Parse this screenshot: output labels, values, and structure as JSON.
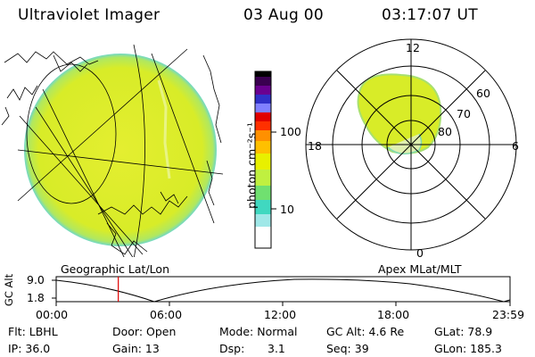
{
  "header": {
    "title": "Ultraviolet Imager",
    "date": "03 Aug 00",
    "time": "03:17:07 UT"
  },
  "colorbar": {
    "unit_label": "photon cm⁻²s⁻¹",
    "ticks": [
      "100",
      "10"
    ],
    "colors": [
      "#000000",
      "#3a0050",
      "#6a0090",
      "#3030c8",
      "#8080ff",
      "#ff0000",
      "#ff8000",
      "#ffc000",
      "#ffff00",
      "#c0ff40",
      "#40ff80",
      "#40e0e0",
      "#ffffff"
    ]
  },
  "geo_panel": {
    "label": "Geographic Lat/Lon",
    "disk_color": "#d8ec28"
  },
  "polar_panel": {
    "label": "Apex MLat/MLT",
    "mlt_top": "12",
    "mlt_left": "18",
    "mlt_right": "6",
    "mlt_bottom": "0",
    "lat_60": "60",
    "lat_70": "70",
    "lat_80": "80"
  },
  "altitude_plot": {
    "ylabel": "GC Alt",
    "y_ticks": [
      "9.0",
      "1.8"
    ],
    "x_ticks": [
      "00:00",
      "06:00",
      "12:00",
      "18:00",
      "23:59"
    ],
    "current_time_marker_hours": 3.285,
    "marker_color": "#e00000"
  },
  "info": {
    "flt": "Flt: LBHL",
    "door": "Door: Open",
    "mode": "Mode: Normal",
    "gc_alt": "GC Alt: 4.6 Re",
    "glat": "GLat: 78.9",
    "ip": "IP: 36.0",
    "gain": "Gain: 13",
    "dsp_label": "Dsp:",
    "dsp_value": "3.1",
    "seq": "Seq: 39",
    "glon": "GLon: 185.3"
  }
}
